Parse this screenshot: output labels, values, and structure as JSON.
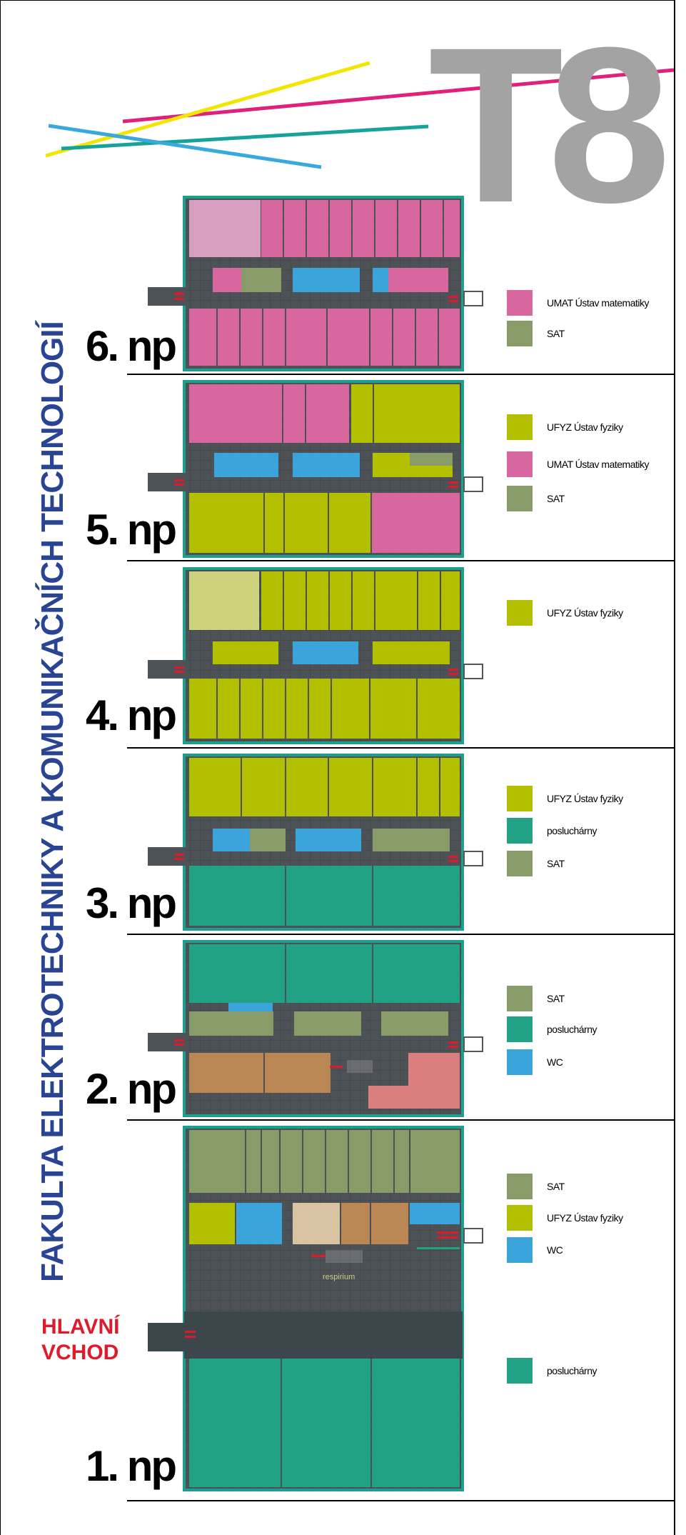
{
  "building_code": "T8",
  "faculty_title": "FAKULTA ELEKTROTECHNIKY A KOMUNIKAČNÍCH TECHNOLOGIÍ",
  "main_entrance": {
    "line1": "HLAVNÍ",
    "line2": "VCHOD"
  },
  "respirium_label": "respirium",
  "colors": {
    "UMAT": "#d9679f",
    "UMAT_light": "#d89fc1",
    "SAT": "#879c68",
    "UFYZ": "#b2c000",
    "UFYZ_light": "#cfd27c",
    "posluchamy": "#21a285",
    "WC": "#3aa4db",
    "brown": "#b98654",
    "beige": "#d8c4a2",
    "salmon": "#d97f7d",
    "frame": "#1e9e8c",
    "corridor": "#555a60",
    "arrow": "#e01a2b",
    "title_blue": "#2a4494",
    "T8_gray": "#a3a3a3"
  },
  "floors": [
    {
      "label": "6. np",
      "legend": [
        {
          "key": "UMAT",
          "label": "UMAT Ústav matematiky"
        },
        {
          "key": "SAT",
          "label": "SAT"
        }
      ]
    },
    {
      "label": "5. np",
      "legend": [
        {
          "key": "UFYZ",
          "label": "UFYZ Ústav fyziky"
        },
        {
          "key": "UMAT",
          "label": "UMAT Ústav matematiky"
        },
        {
          "key": "SAT",
          "label": "SAT"
        }
      ]
    },
    {
      "label": "4. np",
      "legend": [
        {
          "key": "UFYZ",
          "label": "UFYZ Ústav fyziky"
        }
      ]
    },
    {
      "label": "3. np",
      "legend": [
        {
          "key": "UFYZ",
          "label": "UFYZ Ústav fyziky"
        },
        {
          "key": "posluchamy",
          "label": "posluchárny"
        },
        {
          "key": "SAT",
          "label": "SAT"
        }
      ]
    },
    {
      "label": "2. np",
      "legend": [
        {
          "key": "SAT",
          "label": "SAT"
        },
        {
          "key": "posluchamy",
          "label": "posluchárny"
        },
        {
          "key": "WC",
          "label": "WC"
        }
      ]
    },
    {
      "label": "1. np",
      "legend": [
        {
          "key": "SAT",
          "label": "SAT"
        },
        {
          "key": "UFYZ",
          "label": "UFYZ Ústav fyziky"
        },
        {
          "key": "WC",
          "label": "WC"
        },
        {
          "key": "posluchamy",
          "label": "posluchárny"
        }
      ]
    }
  ]
}
